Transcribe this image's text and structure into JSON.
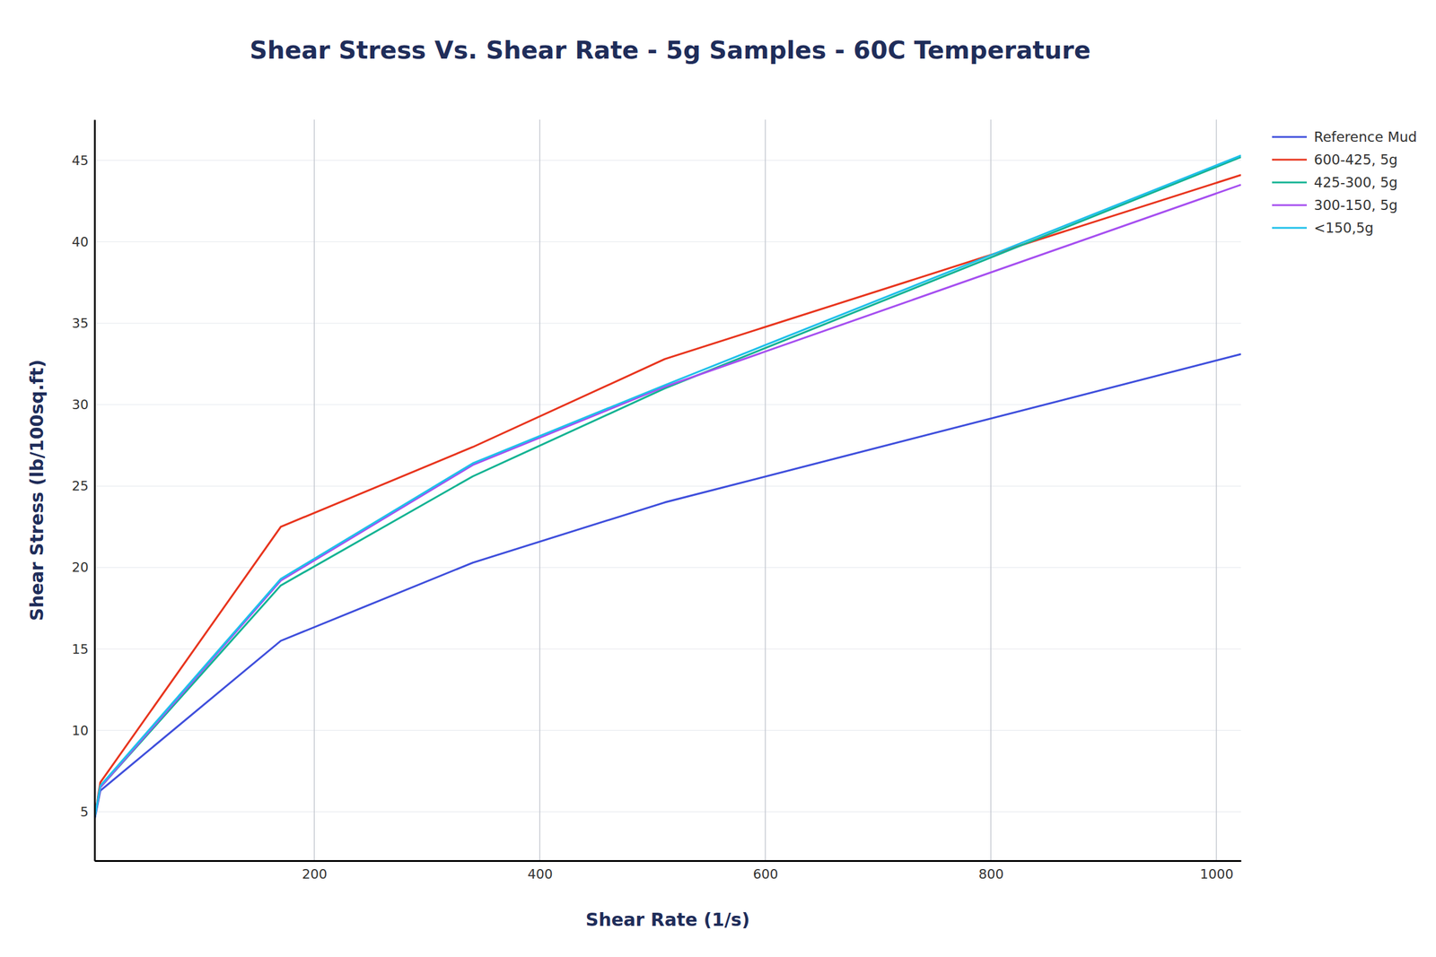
{
  "chart_data": {
    "type": "line",
    "title": "Shear Stress Vs. Shear Rate - 5g Samples - 60C Temperature",
    "x_label": "Shear Rate (1/s)",
    "y_label": "Shear Stress (lb/100sq.ft)",
    "x": [
      5.11,
      10.22,
      170.3,
      340.6,
      510.9,
      1021.8
    ],
    "series": [
      {
        "name": "Reference Mud",
        "color": "#3f4fdc",
        "values": [
          4.5,
          6.3,
          15.5,
          20.3,
          24.0,
          33.1
        ]
      },
      {
        "name": "600-425, 5g",
        "color": "#e8351e",
        "values": [
          4.6,
          6.8,
          22.5,
          27.4,
          32.8,
          44.1
        ]
      },
      {
        "name": "425-300, 5g",
        "color": "#14b393",
        "values": [
          4.6,
          6.5,
          18.9,
          25.6,
          31.0,
          45.2
        ]
      },
      {
        "name": "300-150, 5g",
        "color": "#a64ff0",
        "values": [
          4.6,
          6.5,
          19.2,
          26.3,
          31.1,
          43.5
        ]
      },
      {
        "name": "<150,5g",
        "color": "#1fc0ea",
        "values": [
          4.6,
          6.6,
          19.3,
          26.4,
          31.2,
          45.3
        ]
      }
    ],
    "xlim": [
      5.11,
      1021.8
    ],
    "ylim": [
      2,
      47.5
    ],
    "xticks": [
      200,
      400,
      600,
      800,
      1000
    ],
    "yticks": [
      5,
      10,
      15,
      20,
      25,
      30,
      35,
      40,
      45
    ],
    "grid": true,
    "legend": "top-right"
  }
}
